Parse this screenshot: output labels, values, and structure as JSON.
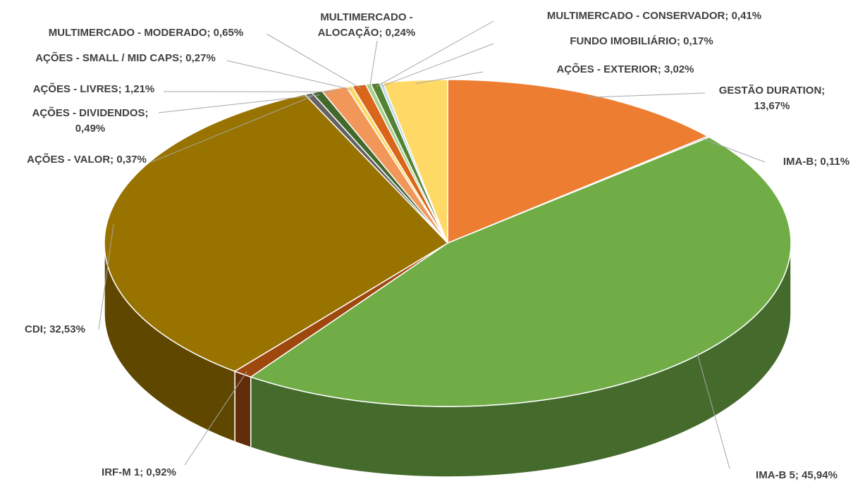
{
  "chart_data": {
    "type": "pie",
    "categories": [
      "GESTÃO DURATION",
      "IMA-B",
      "IMA-B 5",
      "IRF-M 1",
      "CDI",
      "AÇÕES - VALOR",
      "AÇÕES - DIVIDENDOS",
      "AÇÕES - LIVRES",
      "AÇÕES - SMALL / MID CAPS",
      "MULTIMERCADO - MODERADO",
      "MULTIMERCADO - ALOCAÇÃO",
      "MULTIMERCADO - CONSERVADOR",
      "FUNDO IMOBILIÁRIO",
      "AÇÕES - EXTERIOR"
    ],
    "values": [
      13.67,
      0.11,
      45.94,
      0.92,
      32.53,
      0.37,
      0.49,
      1.21,
      0.27,
      0.65,
      0.24,
      0.41,
      0.17,
      3.02
    ],
    "value_labels": [
      "13,67%",
      "0,11%",
      "45,94%",
      "0,92%",
      "32,53%",
      "0,37%",
      "0,49%",
      "1,21%",
      "0,27%",
      "0,65%",
      "0,24%",
      "0,41%",
      "0,17%",
      "3,02%"
    ],
    "colors": [
      "#ED7D31",
      "#A5A5A5",
      "#70AD47",
      "#9E480E",
      "#997300",
      "#636363",
      "#43682B",
      "#F1975A",
      "#FFD966",
      "#D9661A",
      "#A9D18E",
      "#548235",
      "#BDD7EE",
      "#FFD966"
    ]
  }
}
